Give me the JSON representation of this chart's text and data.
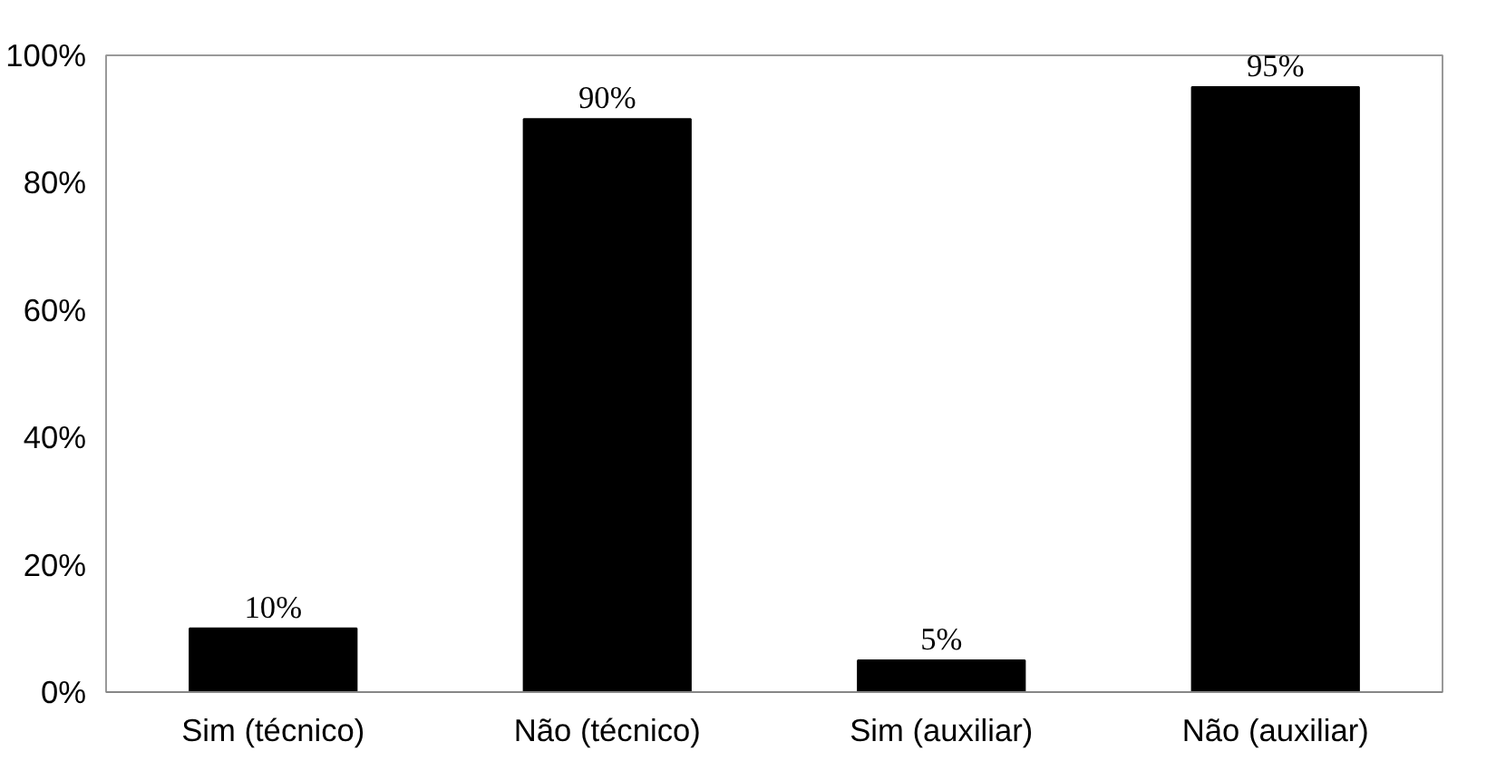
{
  "chart_data": {
    "type": "bar",
    "categories": [
      "Sim (técnico)",
      "Não (técnico)",
      "Sim (auxiliar)",
      "Não (auxiliar)"
    ],
    "values": [
      10,
      90,
      5,
      95
    ],
    "value_labels": [
      "10%",
      "90%",
      "5%",
      "95%"
    ],
    "color": "#000000",
    "ylim": [
      0,
      100
    ],
    "yticks": [
      {
        "value": 0,
        "label": "0%"
      },
      {
        "value": 20,
        "label": "20%"
      },
      {
        "value": 40,
        "label": "40%"
      },
      {
        "value": 60,
        "label": "60%"
      },
      {
        "value": 80,
        "label": "80%"
      },
      {
        "value": 100,
        "label": "100%"
      }
    ],
    "grid": false
  }
}
